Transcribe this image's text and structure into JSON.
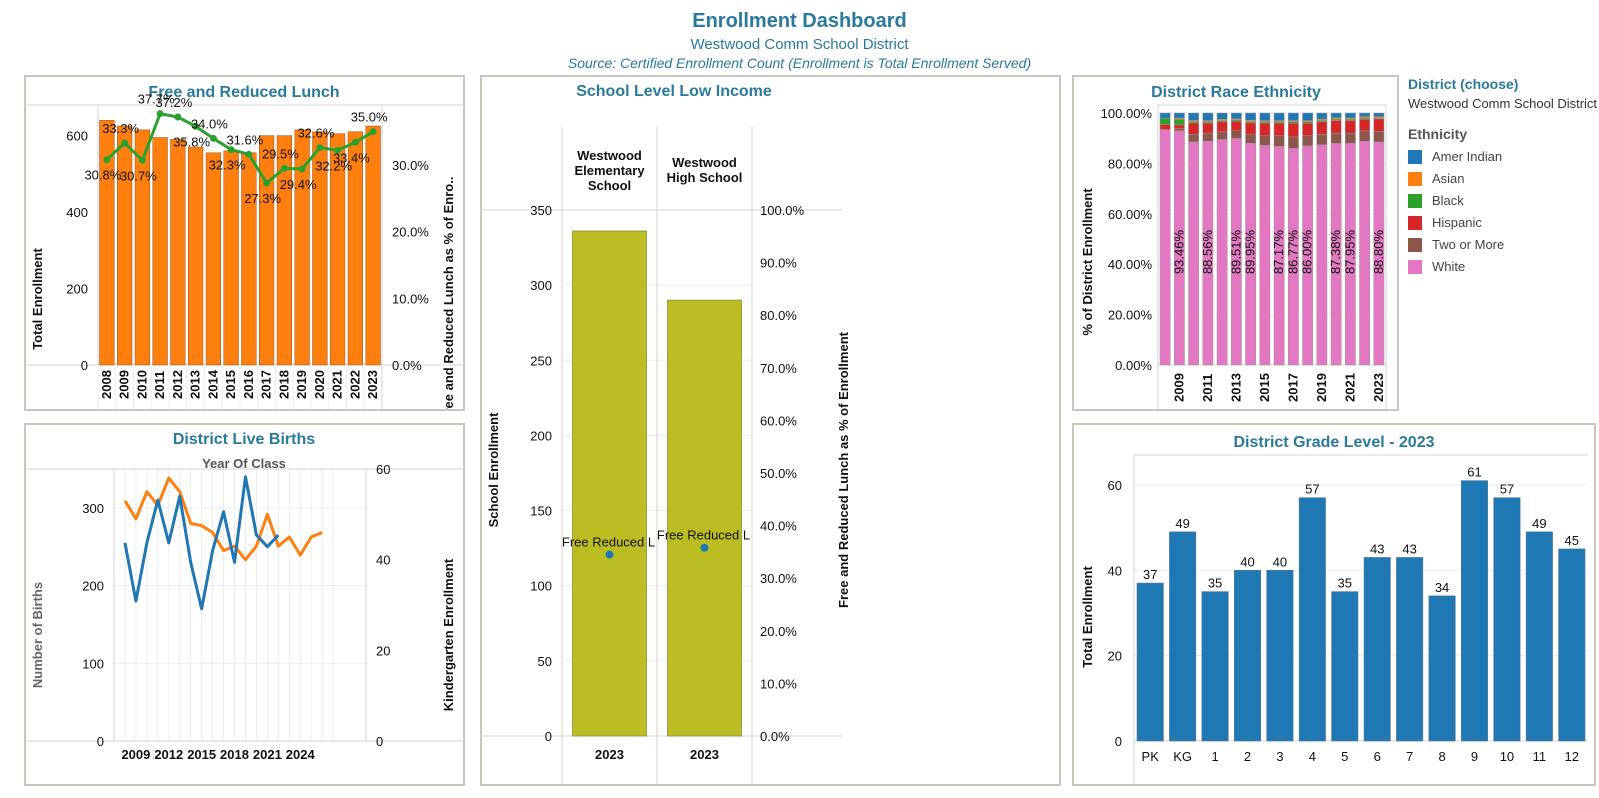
{
  "header": {
    "title": "Enrollment Dashboard",
    "subtitle": "Westwood Comm School District",
    "source": "Source: Certified Enrollment Count (Enrollment is Total Enrollment Served)"
  },
  "colors": {
    "orange": "#ff7f0e",
    "blue": "#1f77b4",
    "green": "#2ca02c",
    "olive": "#bcbd22",
    "red": "#d62728",
    "brown": "#8c564b",
    "pink": "#e377c2",
    "title": "#2a7a9b"
  },
  "panels": {
    "frl": {
      "title": "Free and Reduced Lunch",
      "chart_data": {
        "type": "bar",
        "categories": [
          "2008",
          "2009",
          "2010",
          "2011",
          "2012",
          "2013",
          "2014",
          "2015",
          "2016",
          "2017",
          "2018",
          "2019",
          "2020",
          "2021",
          "2022",
          "2023"
        ],
        "values": [
          640,
          625,
          615,
          595,
          590,
          570,
          555,
          560,
          555,
          600,
          600,
          615,
          610,
          605,
          610,
          625
        ],
        "ylabel": "Total Enrollment",
        "ylim": [
          0,
          680
        ],
        "yticks": [
          "0",
          "200",
          "400",
          "600"
        ],
        "line": {
          "values": [
            30.8,
            33.3,
            30.7,
            37.7,
            37.2,
            35.8,
            34.0,
            32.3,
            31.6,
            27.3,
            29.5,
            29.4,
            32.6,
            32.2,
            33.4,
            35.0
          ],
          "labels": [
            "30.8%",
            "33.3%",
            "30.7%",
            "37.7%",
            "37.2%",
            "35.8%",
            "34.0%",
            "32.3%",
            "31.6%",
            "27.3%",
            "29.5%",
            "29.4%",
            "32.6%",
            "32.2%",
            "33.4%",
            "35.0%"
          ]
        },
        "y2label": "Free and Reduced Lunch  as % of Enro..",
        "y2ticks": [
          "0.0%",
          "10.0%",
          "20.0%",
          "30.0%"
        ],
        "y2lim": [
          0,
          39
        ]
      }
    },
    "births": {
      "title": "District Live Births",
      "header": "Year Of Class",
      "chart_data": {
        "type": "line",
        "xticks": [
          "2009",
          "2012",
          "2015",
          "2018",
          "2021",
          "2024"
        ],
        "x_range": [
          2007,
          2030
        ],
        "ylabel": "Number of Births",
        "ylim": [
          0,
          350
        ],
        "yticks": [
          "0",
          "100",
          "200",
          "300"
        ],
        "y2label": "Kindergarten Enrollment",
        "y2lim": [
          0,
          60
        ],
        "y2ticks": [
          "0",
          "20",
          "40",
          "60"
        ],
        "series": [
          {
            "color": "orange",
            "x": [
              2008,
              2009,
              2010,
              2011,
              2012,
              2013,
              2014,
              2015,
              2016,
              2017,
              2018,
              2019,
              2020,
              2021,
              2022,
              2023,
              2024,
              2025,
              2026
            ],
            "values": [
              53,
              49,
              55,
              52,
              58,
              55,
              48,
              47.5,
              46,
              42,
              43,
              40,
              43,
              50,
              43,
              45,
              41,
              45,
              46
            ]
          },
          {
            "color": "blue",
            "x": [
              2008,
              2009,
              2010,
              2011,
              2012,
              2013,
              2014,
              2015,
              2016,
              2017,
              2018,
              2019,
              2020,
              2021,
              2022
            ],
            "values": [
              255,
              180,
              255,
              310,
              255,
              315,
              230,
              170,
              245,
              295,
              230,
              340,
              265,
              250,
              265
            ]
          }
        ]
      }
    },
    "school": {
      "title": "School Level Low Income",
      "chart_data": {
        "type": "bar",
        "categories": [
          "Westwood Elementary School",
          "Westwood High School"
        ],
        "cat_lines": [
          [
            "Westwood",
            "Elementary",
            "School"
          ],
          [
            "Westwood",
            "High School"
          ]
        ],
        "xlabels": [
          "2023",
          "2023"
        ],
        "values": [
          336,
          290
        ],
        "ylabel": "School Enrollment",
        "ylim": [
          0,
          350
        ],
        "yticks": [
          "0",
          "50",
          "100",
          "150",
          "200",
          "250",
          "300",
          "350"
        ],
        "y2label": "Free and Reduced Lunch  as % of Enrollment",
        "y2lim": [
          0,
          100
        ],
        "y2ticks": [
          "0.0%",
          "10.0%",
          "20.0%",
          "30.0%",
          "40.0%",
          "50.0%",
          "60.0%",
          "70.0%",
          "80.0%",
          "90.0%",
          "100.0%"
        ],
        "points": [
          34.5,
          35.8
        ],
        "point_labels": [
          "Free Reduced L",
          "Free Reduced L"
        ]
      }
    },
    "race": {
      "title": "District Race Ethnicity",
      "chart_data": {
        "type": "bar",
        "stacked": true,
        "x": [
          "2008",
          "2009",
          "2010",
          "2011",
          "2012",
          "2013",
          "2014",
          "2015",
          "2016",
          "2017",
          "2018",
          "2019",
          "2020",
          "2021",
          "2022",
          "2023"
        ],
        "xticks": [
          "2009",
          "2011",
          "2013",
          "2015",
          "2017",
          "2019",
          "2021",
          "2023"
        ],
        "ylabel": "% of District Enrollment",
        "ylim": [
          0,
          100
        ],
        "yticks": [
          "0.00%",
          "20.00%",
          "40.00%",
          "60.00%",
          "80.00%",
          "100.00%"
        ],
        "series": [
          {
            "name": "White",
            "color": "pink",
            "values": [
              93.46,
              93.0,
              88.56,
              88.8,
              89.51,
              89.95,
              88.0,
              87.17,
              86.77,
              86.0,
              87.0,
              87.38,
              87.95,
              88.0,
              88.8,
              88.5
            ]
          },
          {
            "name": "Two or More",
            "color": "brown",
            "values": [
              0,
              0.8,
              3.0,
              3.2,
              3.0,
              3.0,
              3.6,
              3.8,
              4.2,
              4.5,
              4.0,
              4.2,
              4.1,
              4.0,
              4.1,
              4.2
            ]
          },
          {
            "name": "Hispanic",
            "color": "red",
            "values": [
              2.0,
              1.5,
              4.5,
              4.0,
              4.0,
              3.8,
              4.5,
              5.0,
              5.0,
              5.5,
              5.0,
              5.0,
              5.0,
              5.0,
              4.6,
              5.0
            ]
          },
          {
            "name": "Black",
            "color": "green",
            "values": [
              2.54,
              2.2,
              0.5,
              0.5,
              0.5,
              0.5,
              0.5,
              0.5,
              0.5,
              0.5,
              0.5,
              0.5,
              0.5,
              0.5,
              0.5,
              0.3
            ]
          },
          {
            "name": "Asian",
            "color": "orange",
            "values": [
              0,
              0.5,
              0.5,
              0.5,
              0.5,
              0.4,
              0.5,
              0.5,
              0.5,
              0.5,
              0.5,
              0.5,
              0.5,
              0.5,
              0.5,
              0.5
            ]
          },
          {
            "name": "Amer Indian",
            "color": "blue",
            "values": [
              2.0,
              2.0,
              2.94,
              3.0,
              2.49,
              2.35,
              2.9,
              3.03,
              3.03,
              3.0,
              3.0,
              2.42,
              1.95,
              2.0,
              1.5,
              1.5
            ]
          }
        ],
        "bar_labels": {
          "1": "93.46%",
          "3": "88.56%",
          "5": "89.51%",
          "6": "89.95%",
          "8": "87.17%",
          "9": "86.77%",
          "10": "86.00%",
          "12": "87.38%",
          "13": "87.95%",
          "15": "88.80%"
        }
      }
    },
    "grade": {
      "title": "District Grade Level - 2023",
      "chart_data": {
        "type": "bar",
        "categories": [
          "PK",
          "KG",
          "1",
          "2",
          "3",
          "4",
          "5",
          "6",
          "7",
          "8",
          "9",
          "10",
          "11",
          "12"
        ],
        "values": [
          37,
          49,
          35,
          40,
          40,
          57,
          35,
          43,
          43,
          34,
          61,
          57,
          49,
          45
        ],
        "ylabel": "Total Enrollment",
        "ylim": [
          0,
          67
        ],
        "yticks": [
          "0",
          "20",
          "40",
          "60"
        ]
      }
    }
  },
  "legend": {
    "title": "District (choose)",
    "selected": "Westwood Comm School District",
    "heading": "Ethnicity",
    "items": [
      {
        "label": "Amer Indian",
        "color": "#1f77b4"
      },
      {
        "label": "Asian",
        "color": "#ff7f0e"
      },
      {
        "label": "Black",
        "color": "#2ca02c"
      },
      {
        "label": "Hispanic",
        "color": "#d62728"
      },
      {
        "label": "Two or More",
        "color": "#8c564b"
      },
      {
        "label": "White",
        "color": "#e377c2"
      }
    ]
  }
}
